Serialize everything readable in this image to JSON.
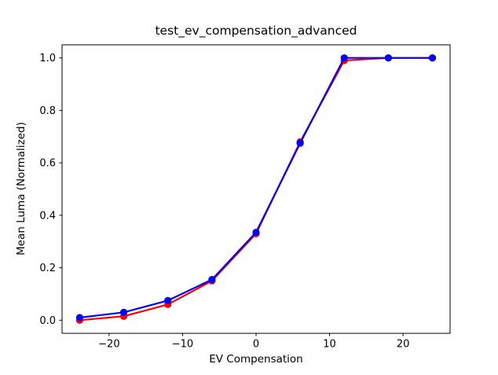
{
  "figure": {
    "background": "#ffffff",
    "axes_facecolor": "#ffffff",
    "axes_edgecolor": "#000000",
    "text_color": "#000000"
  },
  "chart_data": {
    "type": "line",
    "title": "test_ev_compensation_advanced",
    "xlabel": "EV Compensation",
    "ylabel": "Mean Luma (Normalized)",
    "x": [
      -24,
      -18,
      -12,
      -6,
      0,
      6,
      12,
      18,
      24
    ],
    "series": [
      {
        "name": "red-series",
        "color": "#ff0000",
        "marker": "circle",
        "line_width": 2.2,
        "values": [
          0.0,
          0.015,
          0.06,
          0.15,
          0.33,
          0.68,
          0.99,
          1.0,
          1.0
        ]
      },
      {
        "name": "blue-series",
        "color": "#0000ff",
        "marker": "circle",
        "line_width": 2.2,
        "values": [
          0.01,
          0.03,
          0.075,
          0.155,
          0.335,
          0.675,
          1.0,
          1.0,
          1.0
        ]
      }
    ],
    "xlim": [
      -26.4,
      26.4
    ],
    "ylim": [
      -0.05,
      1.05
    ],
    "xticks": {
      "values": [
        -20,
        -10,
        0,
        10,
        20
      ],
      "labels": [
        "−20",
        "−10",
        "0",
        "10",
        "20"
      ]
    },
    "yticks": {
      "values": [
        0.0,
        0.2,
        0.4,
        0.6,
        0.8,
        1.0
      ],
      "labels": [
        "0.0",
        "0.2",
        "0.4",
        "0.6",
        "0.8",
        "1.0"
      ]
    },
    "grid": false,
    "legend": "none"
  }
}
